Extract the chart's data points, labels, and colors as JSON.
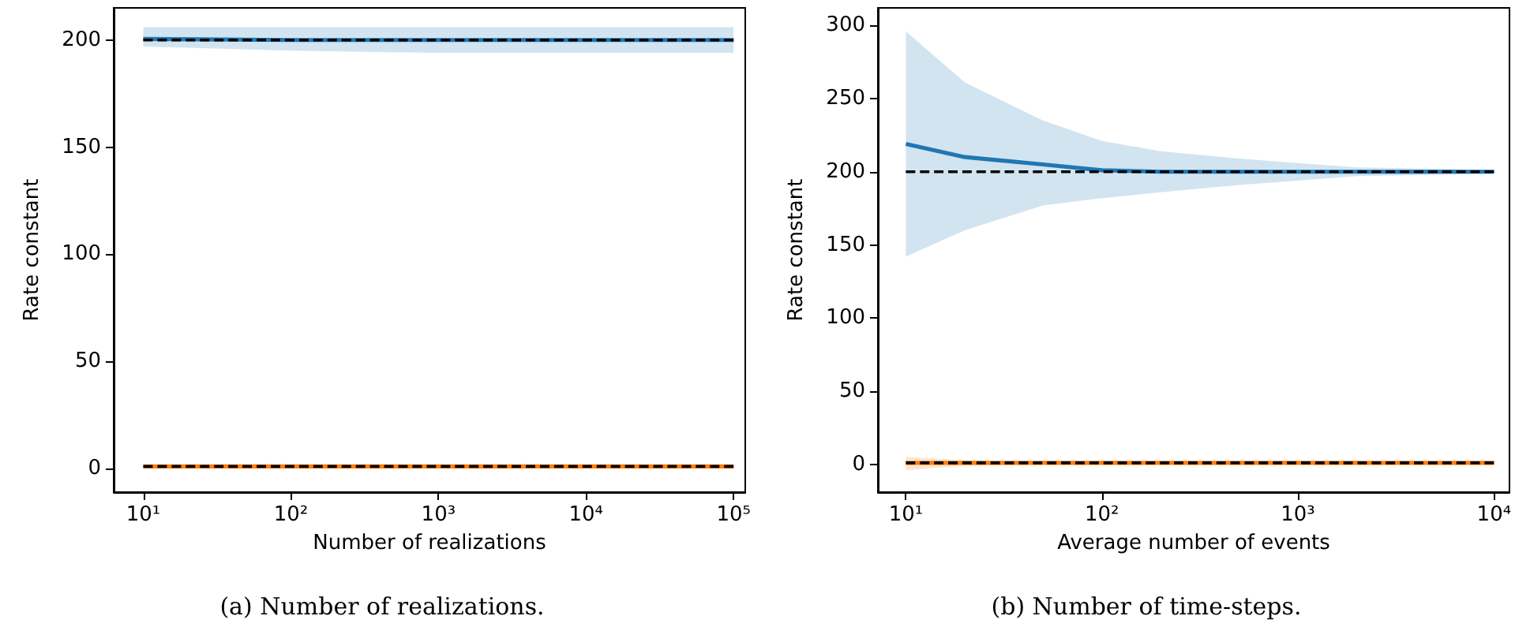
{
  "chart_data": [
    {
      "type": "line",
      "title": "(a) Number of realizations.",
      "xlabel": "Number of realizations",
      "ylabel": "Rate constant",
      "log": "x",
      "xlim": [
        6.3,
        120000
      ],
      "xticks": [
        {
          "value": 10,
          "label": "10¹"
        },
        {
          "value": 100,
          "label": "10²"
        },
        {
          "value": 1000,
          "label": "10³"
        },
        {
          "value": 10000,
          "label": "10⁴"
        },
        {
          "value": 100000,
          "label": "10⁵"
        }
      ],
      "ylim": [
        -11,
        215
      ],
      "yticks": [
        0,
        50,
        100,
        150,
        200
      ],
      "marker": "none",
      "series": [
        {
          "color": "#1f77b4",
          "x": [
            10,
            100,
            1000,
            10000,
            100000
          ],
          "values": [
            200.5,
            200,
            200,
            200,
            200
          ],
          "lower": [
            197,
            195,
            194,
            194,
            194
          ],
          "upper": [
            206,
            206,
            206,
            206,
            206
          ]
        },
        {
          "color": "#ff7f0e",
          "x": [
            10,
            100,
            1000,
            10000,
            100000
          ],
          "values": [
            1,
            1,
            1,
            1,
            1
          ]
        },
        {
          "color": "#000000",
          "line_style": "dashed",
          "x": [
            10,
            100000
          ],
          "values": [
            200,
            200
          ]
        },
        {
          "color": "#000000",
          "line_style": "dashed",
          "x": [
            10,
            100000
          ],
          "values": [
            1,
            1
          ]
        }
      ]
    },
    {
      "type": "line",
      "title": "(b) Number of time-steps.",
      "xlabel": "Average number of events",
      "ylabel": "Rate constant",
      "log": "x",
      "xlim": [
        7.2,
        12000
      ],
      "xticks": [
        {
          "value": 10,
          "label": "10¹"
        },
        {
          "value": 100,
          "label": "10²"
        },
        {
          "value": 1000,
          "label": "10³"
        },
        {
          "value": 10000,
          "label": "10⁴"
        }
      ],
      "ylim": [
        -19,
        312
      ],
      "yticks": [
        0,
        50,
        100,
        150,
        200,
        250,
        300
      ],
      "marker": "none",
      "series": [
        {
          "color": "#1f77b4",
          "x": [
            10,
            20,
            50,
            100,
            200,
            500,
            1000,
            2000,
            5000,
            10000
          ],
          "values": [
            219,
            210,
            205,
            201,
            200,
            200,
            200,
            200,
            200,
            200
          ],
          "lower": [
            142,
            160,
            177,
            182,
            186,
            191,
            194,
            197,
            198,
            199
          ],
          "upper": [
            296,
            261,
            235,
            221,
            214,
            209,
            206,
            203,
            202,
            201
          ]
        },
        {
          "color": "#ff7f0e",
          "x": [
            10,
            20,
            50,
            100,
            1000,
            10000
          ],
          "values": [
            1,
            1,
            1,
            1,
            1,
            1
          ],
          "lower": [
            -4,
            -1,
            0,
            0,
            0,
            0
          ],
          "upper": [
            5,
            3,
            2,
            2,
            2,
            2
          ]
        },
        {
          "color": "#000000",
          "line_style": "dashed",
          "x": [
            10,
            10000
          ],
          "values": [
            200,
            200
          ]
        },
        {
          "color": "#000000",
          "line_style": "dashed",
          "x": [
            10,
            10000
          ],
          "values": [
            1,
            1
          ]
        }
      ]
    }
  ]
}
